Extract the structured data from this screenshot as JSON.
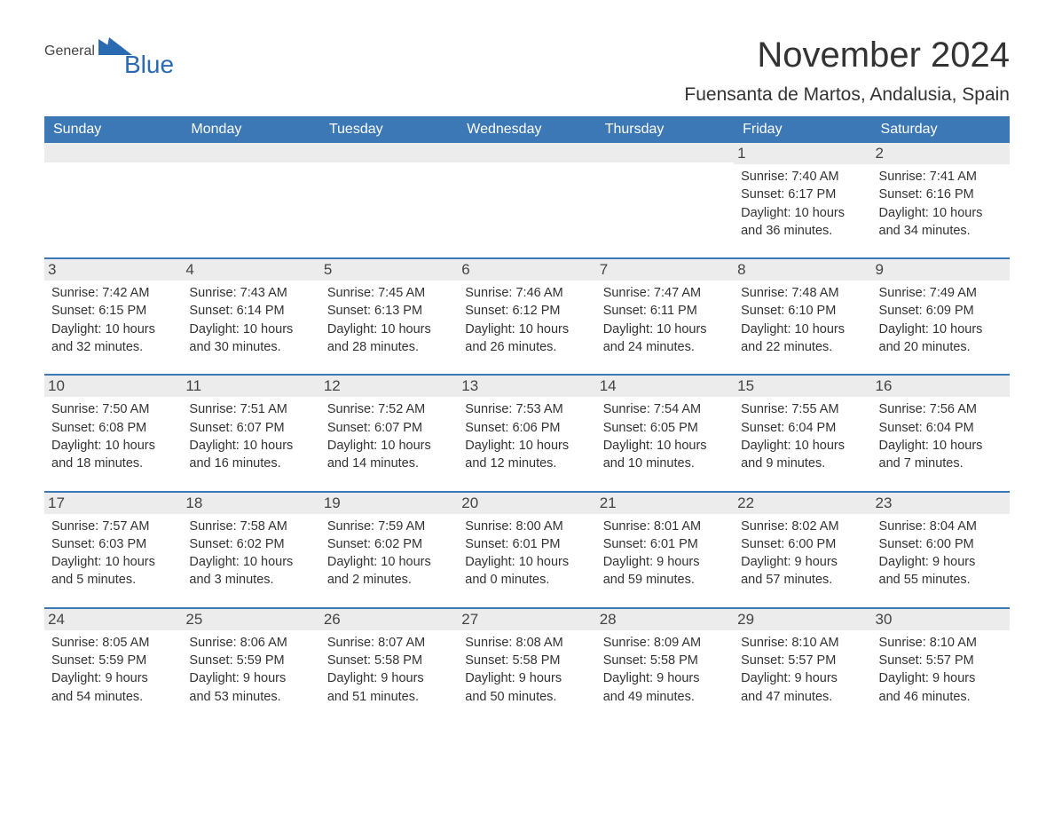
{
  "logo": {
    "general": "General",
    "blue": "Blue"
  },
  "title": "November 2024",
  "subtitle": "Fuensanta de Martos, Andalusia, Spain",
  "colors": {
    "header_bg": "#3b78b5",
    "header_text": "#ffffff",
    "daynum_bg": "#ececec",
    "logo_blue": "#2a6ab0",
    "text": "#333333"
  },
  "weekdays": [
    "Sunday",
    "Monday",
    "Tuesday",
    "Wednesday",
    "Thursday",
    "Friday",
    "Saturday"
  ],
  "labels": {
    "sunrise": "Sunrise:",
    "sunset": "Sunset:",
    "daylight": "Daylight:"
  },
  "weeks": [
    [
      null,
      null,
      null,
      null,
      null,
      {
        "day": "1",
        "sunrise": "7:40 AM",
        "sunset": "6:17 PM",
        "daylight1": "10 hours",
        "daylight2": "and 36 minutes."
      },
      {
        "day": "2",
        "sunrise": "7:41 AM",
        "sunset": "6:16 PM",
        "daylight1": "10 hours",
        "daylight2": "and 34 minutes."
      }
    ],
    [
      {
        "day": "3",
        "sunrise": "7:42 AM",
        "sunset": "6:15 PM",
        "daylight1": "10 hours",
        "daylight2": "and 32 minutes."
      },
      {
        "day": "4",
        "sunrise": "7:43 AM",
        "sunset": "6:14 PM",
        "daylight1": "10 hours",
        "daylight2": "and 30 minutes."
      },
      {
        "day": "5",
        "sunrise": "7:45 AM",
        "sunset": "6:13 PM",
        "daylight1": "10 hours",
        "daylight2": "and 28 minutes."
      },
      {
        "day": "6",
        "sunrise": "7:46 AM",
        "sunset": "6:12 PM",
        "daylight1": "10 hours",
        "daylight2": "and 26 minutes."
      },
      {
        "day": "7",
        "sunrise": "7:47 AM",
        "sunset": "6:11 PM",
        "daylight1": "10 hours",
        "daylight2": "and 24 minutes."
      },
      {
        "day": "8",
        "sunrise": "7:48 AM",
        "sunset": "6:10 PM",
        "daylight1": "10 hours",
        "daylight2": "and 22 minutes."
      },
      {
        "day": "9",
        "sunrise": "7:49 AM",
        "sunset": "6:09 PM",
        "daylight1": "10 hours",
        "daylight2": "and 20 minutes."
      }
    ],
    [
      {
        "day": "10",
        "sunrise": "7:50 AM",
        "sunset": "6:08 PM",
        "daylight1": "10 hours",
        "daylight2": "and 18 minutes."
      },
      {
        "day": "11",
        "sunrise": "7:51 AM",
        "sunset": "6:07 PM",
        "daylight1": "10 hours",
        "daylight2": "and 16 minutes."
      },
      {
        "day": "12",
        "sunrise": "7:52 AM",
        "sunset": "6:07 PM",
        "daylight1": "10 hours",
        "daylight2": "and 14 minutes."
      },
      {
        "day": "13",
        "sunrise": "7:53 AM",
        "sunset": "6:06 PM",
        "daylight1": "10 hours",
        "daylight2": "and 12 minutes."
      },
      {
        "day": "14",
        "sunrise": "7:54 AM",
        "sunset": "6:05 PM",
        "daylight1": "10 hours",
        "daylight2": "and 10 minutes."
      },
      {
        "day": "15",
        "sunrise": "7:55 AM",
        "sunset": "6:04 PM",
        "daylight1": "10 hours",
        "daylight2": "and 9 minutes."
      },
      {
        "day": "16",
        "sunrise": "7:56 AM",
        "sunset": "6:04 PM",
        "daylight1": "10 hours",
        "daylight2": "and 7 minutes."
      }
    ],
    [
      {
        "day": "17",
        "sunrise": "7:57 AM",
        "sunset": "6:03 PM",
        "daylight1": "10 hours",
        "daylight2": "and 5 minutes."
      },
      {
        "day": "18",
        "sunrise": "7:58 AM",
        "sunset": "6:02 PM",
        "daylight1": "10 hours",
        "daylight2": "and 3 minutes."
      },
      {
        "day": "19",
        "sunrise": "7:59 AM",
        "sunset": "6:02 PM",
        "daylight1": "10 hours",
        "daylight2": "and 2 minutes."
      },
      {
        "day": "20",
        "sunrise": "8:00 AM",
        "sunset": "6:01 PM",
        "daylight1": "10 hours",
        "daylight2": "and 0 minutes."
      },
      {
        "day": "21",
        "sunrise": "8:01 AM",
        "sunset": "6:01 PM",
        "daylight1": "9 hours",
        "daylight2": "and 59 minutes."
      },
      {
        "day": "22",
        "sunrise": "8:02 AM",
        "sunset": "6:00 PM",
        "daylight1": "9 hours",
        "daylight2": "and 57 minutes."
      },
      {
        "day": "23",
        "sunrise": "8:04 AM",
        "sunset": "6:00 PM",
        "daylight1": "9 hours",
        "daylight2": "and 55 minutes."
      }
    ],
    [
      {
        "day": "24",
        "sunrise": "8:05 AM",
        "sunset": "5:59 PM",
        "daylight1": "9 hours",
        "daylight2": "and 54 minutes."
      },
      {
        "day": "25",
        "sunrise": "8:06 AM",
        "sunset": "5:59 PM",
        "daylight1": "9 hours",
        "daylight2": "and 53 minutes."
      },
      {
        "day": "26",
        "sunrise": "8:07 AM",
        "sunset": "5:58 PM",
        "daylight1": "9 hours",
        "daylight2": "and 51 minutes."
      },
      {
        "day": "27",
        "sunrise": "8:08 AM",
        "sunset": "5:58 PM",
        "daylight1": "9 hours",
        "daylight2": "and 50 minutes."
      },
      {
        "day": "28",
        "sunrise": "8:09 AM",
        "sunset": "5:58 PM",
        "daylight1": "9 hours",
        "daylight2": "and 49 minutes."
      },
      {
        "day": "29",
        "sunrise": "8:10 AM",
        "sunset": "5:57 PM",
        "daylight1": "9 hours",
        "daylight2": "and 47 minutes."
      },
      {
        "day": "30",
        "sunrise": "8:10 AM",
        "sunset": "5:57 PM",
        "daylight1": "9 hours",
        "daylight2": "and 46 minutes."
      }
    ]
  ]
}
